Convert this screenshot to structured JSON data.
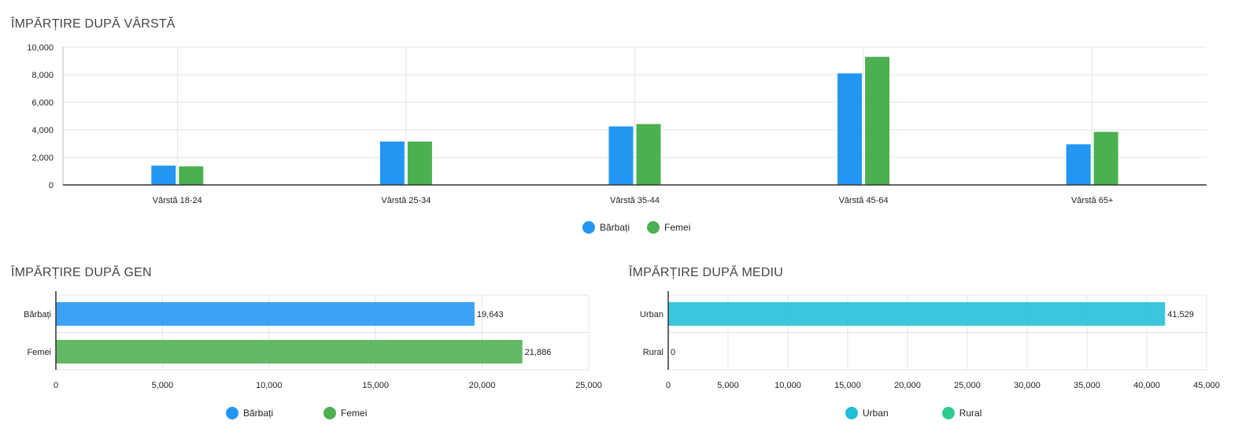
{
  "titles": {
    "age": "ÎMPĂRȚIRE DUPĂ VÂRSTĂ",
    "gender": "ÎMPĂRȚIRE DUPĂ GEN",
    "environment": "ÎMPĂRȚIRE DUPĂ MEDIU"
  },
  "colors": {
    "male": "#2196f3",
    "female": "#4caf50",
    "urban": "#1fbfd8",
    "rural": "#2ecc8f",
    "grid": "#e3e3e3",
    "axis": "#333333"
  },
  "chart_data": [
    {
      "id": "age",
      "type": "bar",
      "title": "ÎMPĂRȚIRE DUPĂ VÂRSTĂ",
      "categories": [
        "Vârstă 18-24",
        "Vârstă 25-34",
        "Vârstă 35-44",
        "Vârstă 45-64",
        "Vârstă 65+"
      ],
      "series": [
        {
          "name": "Bărbați",
          "values": [
            1400,
            3150,
            4250,
            8100,
            2950
          ]
        },
        {
          "name": "Femei",
          "values": [
            1350,
            3150,
            4420,
            9300,
            3850
          ]
        }
      ],
      "ylim": [
        0,
        10000
      ],
      "yticks": [
        "0",
        "2,000",
        "4,000",
        "6,000",
        "8,000",
        "10,000"
      ],
      "grid": true,
      "legend": "bottom-center"
    },
    {
      "id": "gender",
      "type": "bar",
      "orientation": "horizontal",
      "title": "ÎMPĂRȚIRE DUPĂ GEN",
      "categories": [
        "Bărbați",
        "Femei"
      ],
      "values": [
        19643,
        21886
      ],
      "value_labels": [
        "19,643",
        "21,886"
      ],
      "xlim": [
        0,
        25000
      ],
      "xticks": [
        "0",
        "5,000",
        "10,000",
        "15,000",
        "20,000",
        "25,000"
      ],
      "legend_entries": [
        "Bărbați",
        "Femei"
      ],
      "grid": true,
      "legend": "bottom-center"
    },
    {
      "id": "environment",
      "type": "bar",
      "orientation": "horizontal",
      "title": "ÎMPĂRȚIRE DUPĂ MEDIU",
      "categories": [
        "Urban",
        "Rural"
      ],
      "values": [
        41529,
        0
      ],
      "value_labels": [
        "41,529",
        "0"
      ],
      "xlim": [
        0,
        45000
      ],
      "xticks": [
        "0",
        "5,000",
        "10,000",
        "15,000",
        "20,000",
        "25,000",
        "30,000",
        "35,000",
        "40,000",
        "45,000"
      ],
      "legend_entries": [
        "Urban",
        "Rural"
      ],
      "grid": true,
      "legend": "bottom-center"
    }
  ]
}
